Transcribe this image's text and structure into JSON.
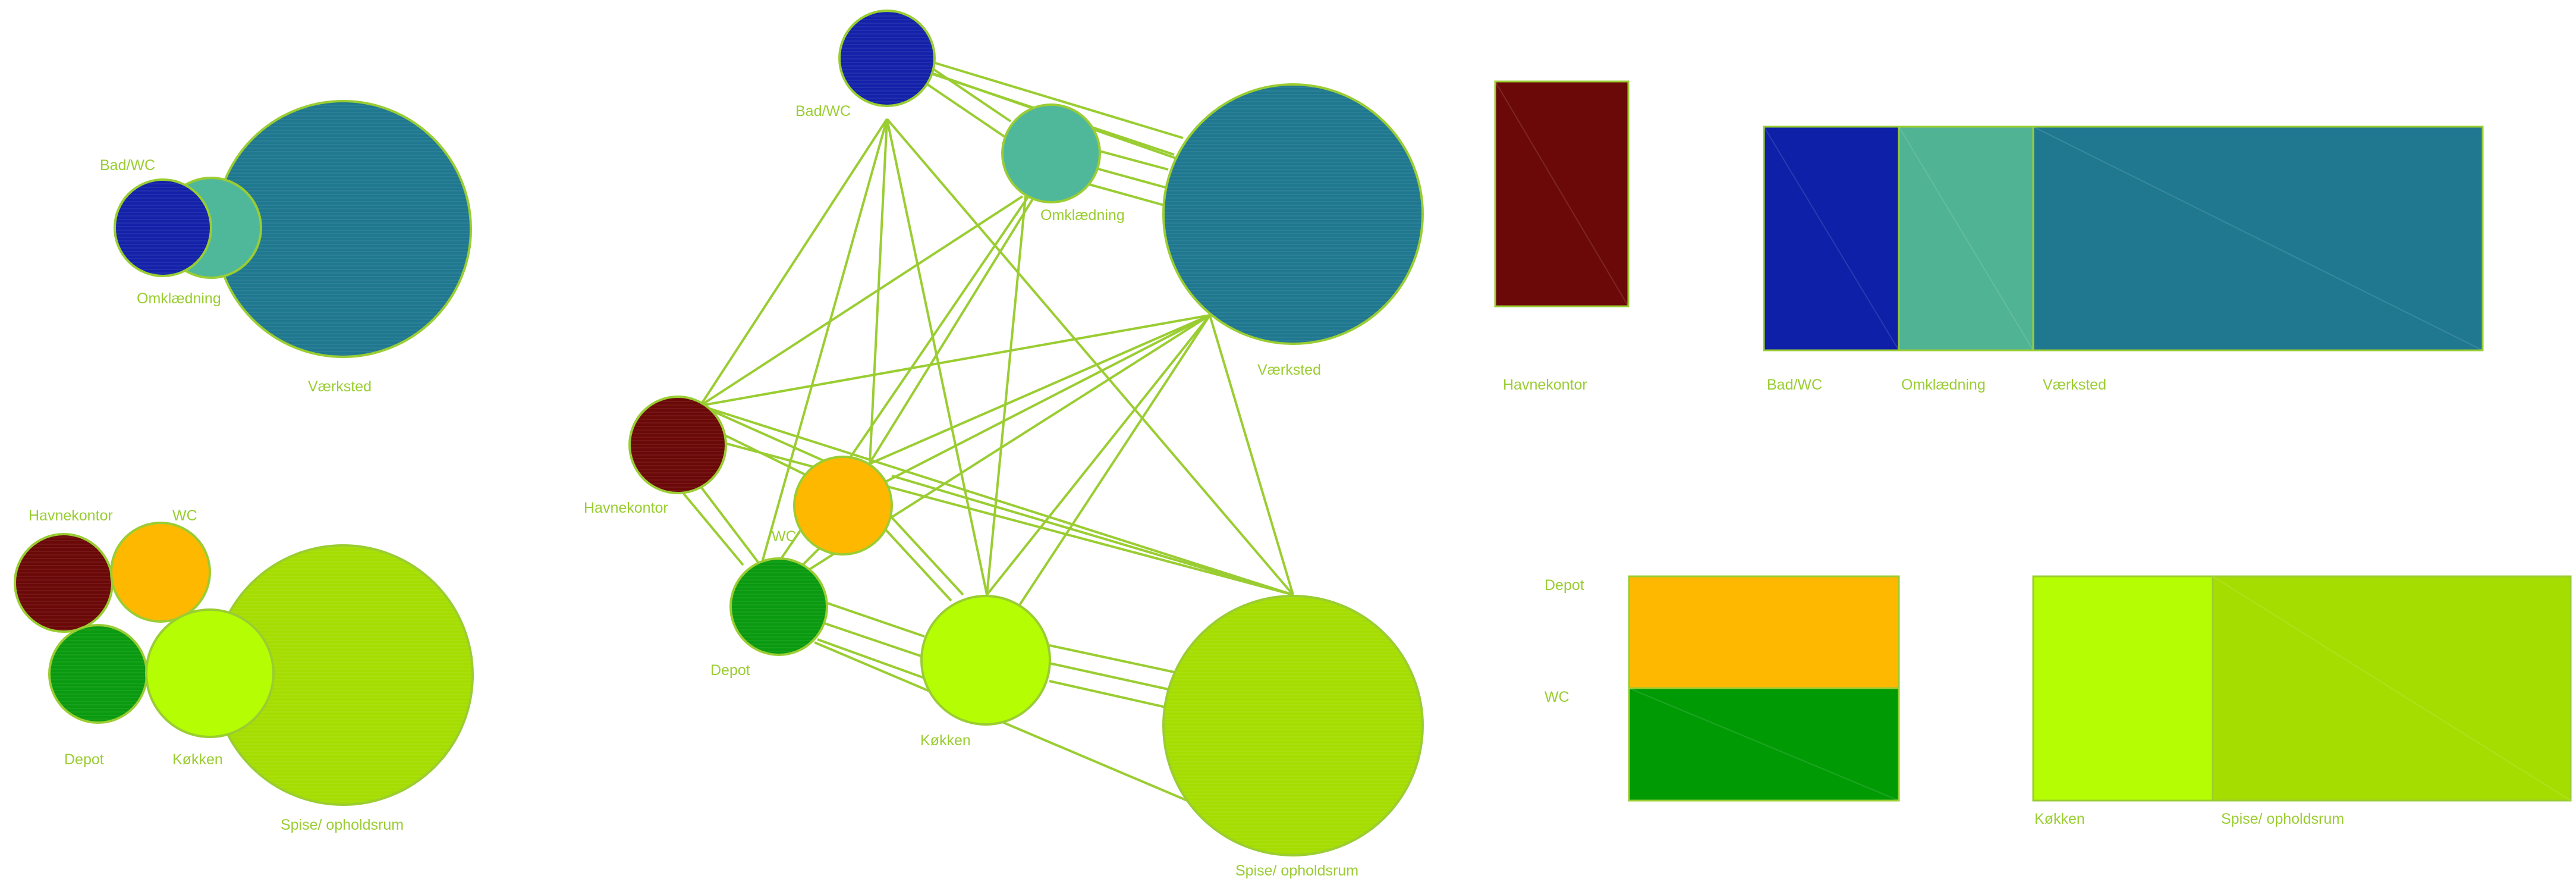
{
  "colors": {
    "stroke": "#9acd32",
    "label": "#9acd32",
    "bad_wc": "#1322a8",
    "omklaedning": "#50b89a",
    "vaerksted": "#1f788f",
    "havnekontor": "#6b0808",
    "wc": "#ffb800",
    "depot": "#0a9a10",
    "kokken": "#b5fd03",
    "spise": "#a5dd00"
  },
  "clusters": {
    "c1": {
      "bad_wc": "Bad/WC",
      "omklaedning": "Omklædning",
      "vaerksted": "Værksted"
    },
    "c2": {
      "havnekontor": "Havnekontor",
      "wc": "WC",
      "depot": "Depot",
      "kokken": "Køkken",
      "spise": "Spise/ opholdsrum"
    }
  },
  "network": {
    "bad_wc": "Bad/WC",
    "omklaedning": "Omklædning",
    "vaerksted": "Værksted",
    "havnekontor": "Havnekontor",
    "wc": "WC",
    "depot": "Depot",
    "kokken": "Køkken",
    "spise": "Spise/ opholdsrum"
  },
  "blocks": {
    "havnekontor": "Havnekontor",
    "bad_wc": "Bad/WC",
    "omklaedning": "Omklædning",
    "vaerksted": "Værksted",
    "depot": "Depot",
    "wc": "WC",
    "kokken": "Køkken",
    "spise": "Spise/ opholdsrum"
  }
}
